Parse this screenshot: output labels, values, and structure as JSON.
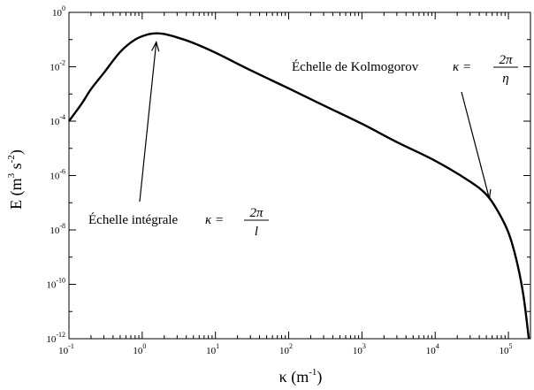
{
  "chart_data": {
    "type": "line",
    "title": "",
    "xlabel": "κ (m⁻¹)",
    "xlabel_parts": {
      "symbol": "κ",
      "unit_open": " (m",
      "unit_exp": "-1",
      "unit_close": ")"
    },
    "ylabel": "E (m³ s⁻²)",
    "ylabel_parts": {
      "symbol": "E",
      "unit_open": " (m",
      "m_exp": "3",
      "s": " s",
      "s_exp": "-2",
      "unit_close": ")"
    },
    "x_scale": "log",
    "y_scale": "log",
    "xlim": [
      0.1,
      200000
    ],
    "ylim": [
      1e-12,
      1
    ],
    "grid": false,
    "legend": "none",
    "x_ticks": [
      {
        "value": 0.1,
        "base": "10",
        "exp": "-1"
      },
      {
        "value": 1,
        "base": "10",
        "exp": "0"
      },
      {
        "value": 10,
        "base": "10",
        "exp": "1"
      },
      {
        "value": 100,
        "base": "10",
        "exp": "2"
      },
      {
        "value": 1000,
        "base": "10",
        "exp": "3"
      },
      {
        "value": 10000,
        "base": "10",
        "exp": "4"
      },
      {
        "value": 100000,
        "base": "10",
        "exp": "5"
      }
    ],
    "y_ticks": [
      {
        "value": 1e-12,
        "base": "10",
        "exp": "-12"
      },
      {
        "value": 1e-10,
        "base": "10",
        "exp": "-10"
      },
      {
        "value": 1e-08,
        "base": "10",
        "exp": "-8"
      },
      {
        "value": 1e-06,
        "base": "10",
        "exp": "-6"
      },
      {
        "value": 0.0001,
        "base": "10",
        "exp": "-4"
      },
      {
        "value": 0.01,
        "base": "10",
        "exp": "-2"
      },
      {
        "value": 1,
        "base": "10",
        "exp": "0"
      }
    ],
    "series": [
      {
        "color": "#000000",
        "points": [
          [
            0.1,
            0.0001
          ],
          [
            0.15,
            0.00045
          ],
          [
            0.2,
            0.0015
          ],
          [
            0.3,
            0.006
          ],
          [
            0.5,
            0.035
          ],
          [
            0.8,
            0.1
          ],
          [
            1.2,
            0.155
          ],
          [
            1.6,
            0.17
          ],
          [
            2.0,
            0.16
          ],
          [
            3.0,
            0.12
          ],
          [
            5.0,
            0.075
          ],
          [
            10,
            0.033
          ],
          [
            30,
            0.0075
          ],
          [
            100,
            0.0016
          ],
          [
            300,
            0.00038
          ],
          [
            1000,
            8e-05
          ],
          [
            3000,
            1.7e-05
          ],
          [
            10000,
            3.5e-06
          ],
          [
            30000,
            6e-07
          ],
          [
            50000,
            2e-07
          ],
          [
            70000,
            5.5e-08
          ],
          [
            100000,
            8e-09
          ],
          [
            130000,
            7e-10
          ],
          [
            160000,
            4e-11
          ],
          [
            190000,
            1e-12
          ]
        ]
      }
    ],
    "annotations": [
      {
        "name": "integral-scale",
        "text": "Échelle intégrale",
        "math_lhs": "κ =",
        "frac_num": "2π",
        "frac_den": "l",
        "arrow_tip": {
          "x": 1.6,
          "y": 0.17
        }
      },
      {
        "name": "kolmogorov-scale",
        "text": "Échelle de Kolmogorov",
        "math_lhs": "κ =",
        "frac_num": "2π",
        "frac_den": "η",
        "arrow_tip": {
          "x": 55000,
          "y": 1.5e-07
        }
      }
    ]
  }
}
